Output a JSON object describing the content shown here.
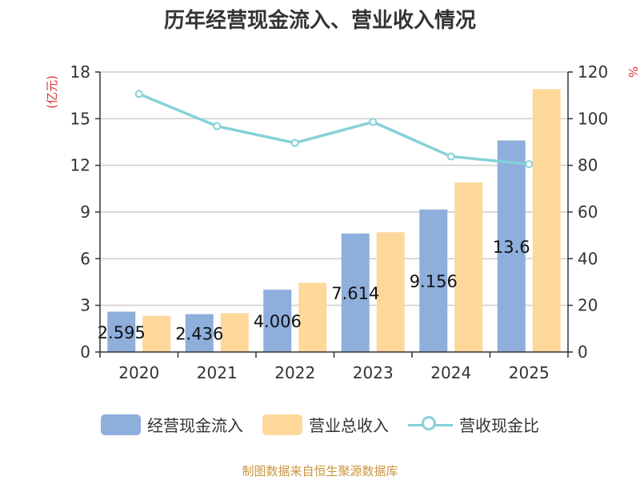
{
  "chart_data": {
    "type": "bar+line",
    "title": "历年经营现金流入、营业收入情况",
    "left_axis": {
      "unit_label": "(亿元)",
      "min": 0,
      "max": 18,
      "ticks": [
        0,
        3,
        6,
        9,
        12,
        15,
        18
      ]
    },
    "right_axis": {
      "unit_label": "%",
      "min": 0,
      "max": 120,
      "ticks": [
        0,
        20,
        40,
        60,
        80,
        100,
        120
      ]
    },
    "categories": [
      "2020",
      "2021",
      "2022",
      "2023",
      "2024",
      "2025"
    ],
    "series": [
      {
        "name": "经营现金流入",
        "type": "bar",
        "axis": "left",
        "color": "#8eaedc",
        "values": [
          2.595,
          2.436,
          4.006,
          7.614,
          9.156,
          13.6
        ],
        "data_labels": [
          "2.595",
          "2.436",
          "4.006",
          "7.614",
          "9.156",
          "13.6"
        ]
      },
      {
        "name": "营业总收入",
        "type": "bar",
        "axis": "left",
        "color": "#fdd89a",
        "values": [
          2.33,
          2.5,
          4.45,
          7.7,
          10.9,
          16.9
        ]
      },
      {
        "name": "营收现金比",
        "type": "line",
        "axis": "right",
        "color": "#86d1d8",
        "values": [
          110.6,
          96.8,
          89.6,
          98.6,
          83.8,
          80.5
        ]
      }
    ],
    "grid": true,
    "legend_position": "bottom"
  },
  "source": "制图数据来自恒生聚源数据库"
}
